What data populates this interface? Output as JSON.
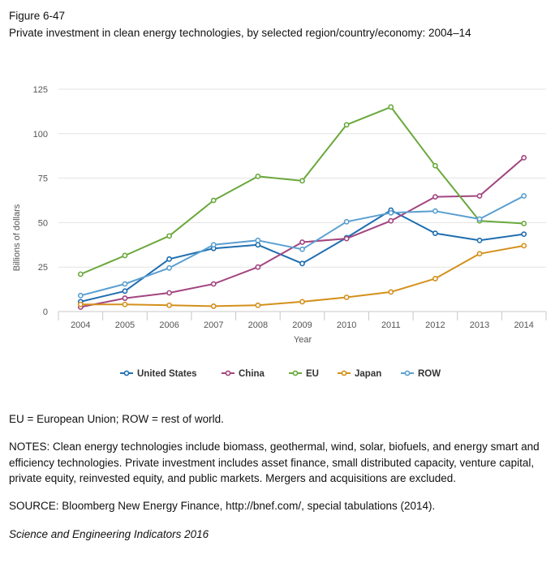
{
  "figure_label": "Figure 6-47",
  "figure_title": "Private investment in clean energy technologies, by selected region/country/economy: 2004–14",
  "chart_data": {
    "type": "line",
    "xlabel": "Year",
    "ylabel": "Billions of dollars",
    "x": [
      "2004",
      "2005",
      "2006",
      "2007",
      "2008",
      "2009",
      "2010",
      "2011",
      "2012",
      "2013",
      "2014"
    ],
    "ylim": [
      0,
      125
    ],
    "yticks": [
      0,
      25,
      50,
      75,
      100,
      125
    ],
    "grid": true,
    "legend_position": "bottom",
    "series": [
      {
        "name": "United States",
        "color": "#1f6eb0",
        "values": [
          5.5,
          11.5,
          29.5,
          35.5,
          37.5,
          27,
          41.5,
          57,
          44,
          40,
          43.5
        ]
      },
      {
        "name": "China",
        "color": "#a2457f",
        "values": [
          2.5,
          7.5,
          10.5,
          15.5,
          25,
          39,
          41,
          51,
          64.5,
          65,
          86.5
        ]
      },
      {
        "name": "EU",
        "color": "#6aa83c",
        "values": [
          21,
          31.5,
          42.5,
          62.5,
          76,
          73.5,
          105,
          115,
          82,
          51,
          49.5
        ]
      },
      {
        "name": "Japan",
        "color": "#d4901b",
        "values": [
          4,
          4,
          3.5,
          3,
          3.5,
          5.5,
          8,
          11,
          18.5,
          32.5,
          37
        ]
      },
      {
        "name": "ROW",
        "color": "#5a9fd0",
        "values": [
          9,
          15.5,
          24.5,
          37.5,
          40,
          35,
          50.5,
          55.5,
          56.5,
          52,
          65
        ]
      }
    ]
  },
  "notes": {
    "abbreviations": "EU = European Union; ROW = rest of world.",
    "notes": "NOTES: Clean energy technologies include biomass, geothermal, wind, solar, biofuels, and energy smart and efficiency technologies. Private investment includes asset finance, small distributed capacity, venture capital, private equity, reinvested equity, and public markets. Mergers and acquisitions are excluded.",
    "source": "SOURCE: Bloomberg New Energy Finance, http://bnef.com/, special tabulations (2014).",
    "credit": "Science and Engineering Indicators 2016"
  }
}
